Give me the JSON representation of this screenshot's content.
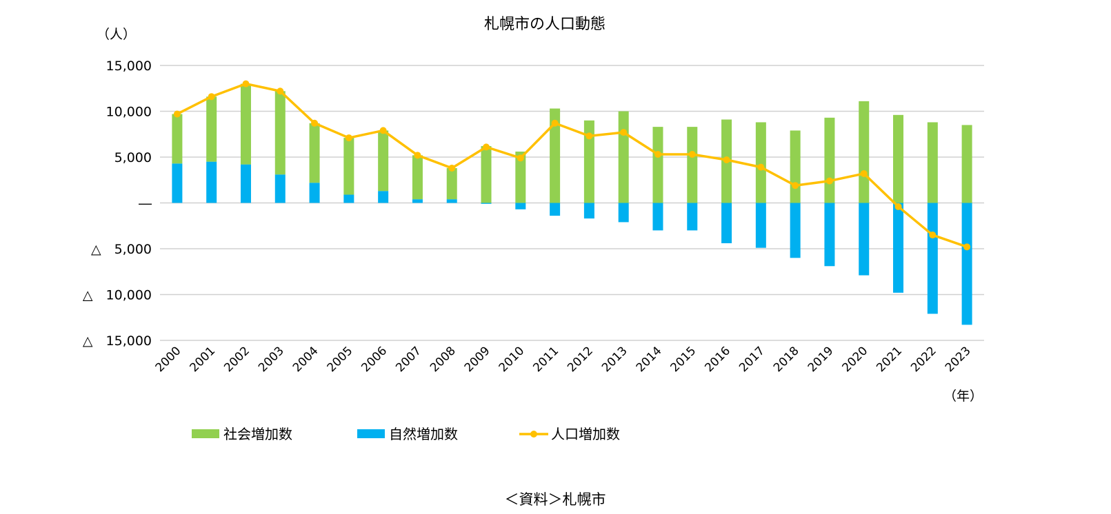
{
  "chart_data": {
    "type": "bar",
    "title": "札幌市の人口動態",
    "ylabel": "（人）",
    "xlabel": "（年）",
    "source": "＜資料＞札幌市",
    "ylim": [
      -15000,
      15000
    ],
    "yticks": [
      {
        "value": 15000,
        "label": "15,000"
      },
      {
        "value": 10000,
        "label": "10,000"
      },
      {
        "value": 5000,
        "label": "5,000"
      },
      {
        "value": 0,
        "label": "―"
      },
      {
        "value": -5000,
        "label": "△　5,000"
      },
      {
        "value": -10000,
        "label": "△　10,000"
      },
      {
        "value": -15000,
        "label": "△　15,000"
      }
    ],
    "grid": true,
    "legend_position": "bottom",
    "categories": [
      "2000",
      "2001",
      "2002",
      "2003",
      "2004",
      "2005",
      "2006",
      "2007",
      "2008",
      "2009",
      "2010",
      "2011",
      "2012",
      "2013",
      "2014",
      "2015",
      "2016",
      "2017",
      "2018",
      "2019",
      "2020",
      "2021",
      "2022",
      "2023"
    ],
    "series": [
      {
        "name": "社会増加数",
        "kind": "bar",
        "color": "#92d050",
        "values": [
          5400,
          7100,
          8800,
          9100,
          6500,
          6200,
          6600,
          4800,
          3400,
          6200,
          5600,
          10300,
          9000,
          10000,
          8300,
          8300,
          9100,
          8800,
          7900,
          9300,
          11100,
          9600,
          8800,
          8500
        ]
      },
      {
        "name": "自然増加数",
        "kind": "bar",
        "color": "#00b0f0",
        "values": [
          4300,
          4500,
          4200,
          3100,
          2200,
          900,
          1300,
          400,
          400,
          -100,
          -700,
          -1400,
          -1700,
          -2100,
          -3000,
          -3000,
          -4400,
          -4900,
          -6000,
          -6900,
          -7900,
          -9800,
          -12100,
          -13300
        ]
      },
      {
        "name": "人口増加数",
        "kind": "line",
        "color": "#ffc000",
        "values": [
          9700,
          11600,
          13000,
          12200,
          8700,
          7100,
          7900,
          5200,
          3800,
          6100,
          4900,
          8700,
          7300,
          7700,
          5300,
          5300,
          4700,
          3900,
          1900,
          2400,
          3200,
          -400,
          -3500,
          -4800
        ]
      }
    ]
  }
}
